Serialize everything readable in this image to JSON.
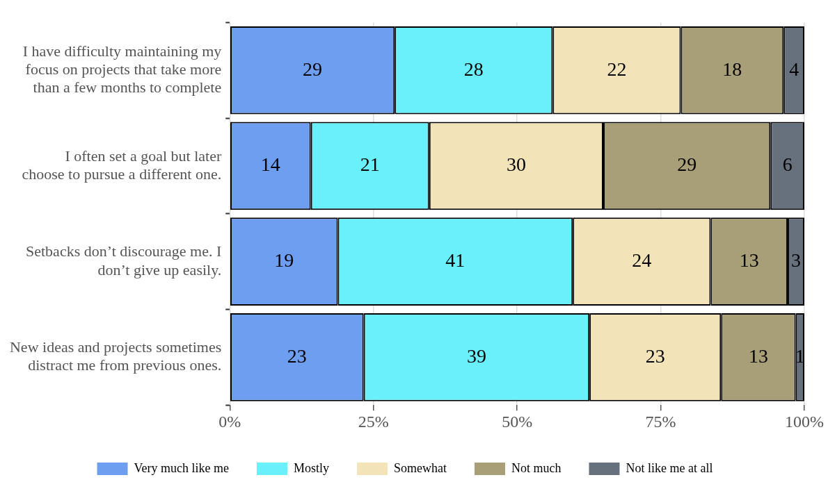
{
  "chart_data": {
    "type": "bar",
    "orientation": "horizontal",
    "stacked": true,
    "categories": [
      "I have difficulty maintaining my focus on projects that take more than a few months to complete",
      "I often set a goal but later choose to pursue a different one.",
      "Setbacks don’t discourage me. I don’t give up easily.",
      "New ideas and projects sometimes distract me from previous ones."
    ],
    "series": [
      {
        "name": "Very much like me",
        "color": "#6d9eef",
        "values": [
          28.7,
          14.1,
          18.8,
          23.3
        ],
        "value_labels": [
          "29",
          "14",
          "19",
          "23"
        ]
      },
      {
        "name": "Mostly",
        "color": "#6af0fb",
        "values": [
          27.5,
          20.6,
          40.9,
          39.3
        ],
        "value_labels": [
          "28",
          "21",
          "41",
          "39"
        ]
      },
      {
        "name": "Somewhat",
        "color": "#f3e3b8",
        "values": [
          22.3,
          30.3,
          24.0,
          22.9
        ],
        "value_labels": [
          "22",
          "30",
          "24",
          "23"
        ]
      },
      {
        "name": "Not much",
        "color": "#a89f78",
        "values": [
          17.9,
          29.1,
          13.4,
          13.0
        ],
        "value_labels": [
          "18",
          "29",
          "13",
          "13"
        ]
      },
      {
        "name": "Not like me at all",
        "color": "#67717e",
        "values": [
          3.6,
          5.9,
          2.9,
          1.5
        ],
        "value_labels": [
          "4",
          "6",
          "3",
          "1"
        ]
      }
    ],
    "xlim": [
      0,
      100
    ],
    "xticks": [
      {
        "value": 0,
        "label": "0%"
      },
      {
        "value": 25,
        "label": "25%"
      },
      {
        "value": 50,
        "label": "50%"
      },
      {
        "value": 75,
        "label": "75%"
      },
      {
        "value": 100,
        "label": "100%"
      }
    ],
    "grid": "x",
    "legend": "bottom"
  }
}
